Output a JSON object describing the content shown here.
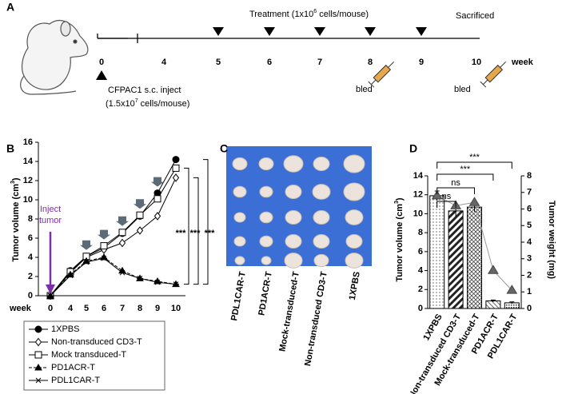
{
  "panels": [
    "A",
    "B",
    "C",
    "D"
  ],
  "timeline": {
    "weeks": [
      "0",
      "4",
      "5",
      "6",
      "7",
      "8",
      "9",
      "10"
    ],
    "unit": "week",
    "treatment": [
      "Treatment  (1x10",
      "6",
      " cells/mouse)"
    ],
    "sacrificed": "Sacrificed",
    "inject": [
      "CFPAC1 s.c. inject",
      "(1.5x10",
      "7",
      " cells/mouse)"
    ],
    "bled": "bled"
  },
  "photo": {
    "labels": [
      "PDL1CAR-T",
      "PD1ACR-T",
      "Mock-transduced-T",
      "Non-transduced CD3-T",
      "1XPBS"
    ]
  },
  "chart_data": [
    {
      "type": "line",
      "categories": [
        0,
        4,
        5,
        6,
        7,
        8,
        9,
        10
      ],
      "x_label": "week",
      "y_label": [
        "Tumor volume (cm",
        "3",
        ")"
      ],
      "ylim": [
        0,
        16
      ],
      "yticks": [
        0,
        2,
        4,
        6,
        8,
        10,
        12,
        14,
        16
      ],
      "annotation": "Inject tumor",
      "significance": [
        "***",
        "***",
        "***"
      ],
      "series": [
        {
          "name": "1XPBS",
          "color": "#000",
          "marker": "circle-filled",
          "values": [
            0,
            2.6,
            4.1,
            5.0,
            6.5,
            8.3,
            10.7,
            14.2
          ]
        },
        {
          "name": "Non-transduced CD3-T",
          "color": "#000",
          "marker": "diamond-open",
          "values": [
            0,
            2.4,
            4.0,
            4.8,
            5.5,
            6.8,
            8.3,
            12.3
          ]
        },
        {
          "name": "Mock transduced-T",
          "color": "#000",
          "marker": "square-open",
          "values": [
            0,
            2.5,
            4.1,
            5.2,
            6.6,
            8.4,
            10.1,
            13.3
          ]
        },
        {
          "name": "PD1ACR-T",
          "color": "#000",
          "marker": "triangle-filled",
          "dash": true,
          "values": [
            0,
            2.2,
            3.6,
            4.0,
            2.6,
            1.8,
            1.5,
            1.2
          ]
        },
        {
          "name": "PDL1CAR-T",
          "color": "#000",
          "marker": "star",
          "values": [
            0,
            2.1,
            3.5,
            3.9,
            2.4,
            1.8,
            1.4,
            1.2
          ]
        }
      ]
    },
    {
      "type": "bar",
      "categories": [
        "1XPBS",
        "Non-transduced CD3-T",
        "Mock-transduced-T",
        "PD1ACR-T",
        "PDL1CAR-T"
      ],
      "y_label": [
        "Tumor volume (cm",
        "3",
        ")"
      ],
      "y2_label": "Tumor weight (mg)",
      "ylim": [
        0,
        14
      ],
      "yticks": [
        0,
        2,
        4,
        6,
        8,
        10,
        12,
        14
      ],
      "y2lim": [
        0,
        8
      ],
      "y2ticks": [
        0,
        1,
        2,
        3,
        4,
        5,
        6,
        7,
        8
      ],
      "significance": [
        "ns",
        "ns",
        "***",
        "***"
      ],
      "series": [
        {
          "color": "#fff",
          "values": [
            11.9,
            10.3,
            10.7,
            0.8,
            0.6
          ],
          "errors": [
            0.5,
            0.6,
            0.5,
            0.1,
            0.1
          ]
        },
        {
          "color": "#666",
          "axis": "y2",
          "values": [
            6.8,
            6.2,
            6.4,
            2.3,
            1.1
          ]
        }
      ]
    }
  ]
}
